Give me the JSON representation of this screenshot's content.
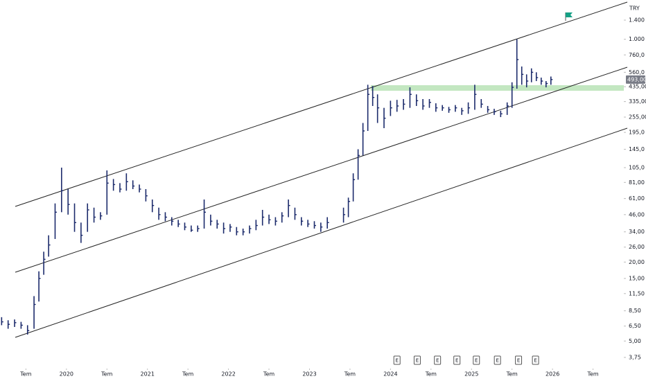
{
  "chart_data": {
    "type": "ohlc",
    "currency": "TRY",
    "color": "#1b2a6b",
    "log_scale": true,
    "x": [
      2019.2,
      2019.28,
      2019.36,
      2019.44,
      2019.52,
      2019.6,
      2019.66,
      2019.72,
      2019.78,
      2019.86,
      2019.94,
      2020.02,
      2020.1,
      2020.18,
      2020.26,
      2020.34,
      2020.42,
      2020.5,
      2020.58,
      2020.66,
      2020.74,
      2020.82,
      2020.9,
      2020.98,
      2021.06,
      2021.14,
      2021.22,
      2021.3,
      2021.38,
      2021.46,
      2021.54,
      2021.62,
      2021.7,
      2021.78,
      2021.86,
      2021.94,
      2022.02,
      2022.1,
      2022.18,
      2022.26,
      2022.34,
      2022.42,
      2022.5,
      2022.58,
      2022.66,
      2022.74,
      2022.82,
      2022.9,
      2022.98,
      2023.06,
      2023.14,
      2023.22,
      2023.42,
      2023.48,
      2023.54,
      2023.6,
      2023.66,
      2023.72,
      2023.78,
      2023.84,
      2023.92,
      2024.0,
      2024.08,
      2024.16,
      2024.24,
      2024.32,
      2024.4,
      2024.48,
      2024.56,
      2024.64,
      2024.72,
      2024.8,
      2024.88,
      2024.96,
      2025.04,
      2025.12,
      2025.2,
      2025.28,
      2025.36,
      2025.44,
      2025.5,
      2025.56,
      2025.62,
      2025.68,
      2025.74,
      2025.8,
      2025.86,
      2025.92,
      2025.98
    ],
    "close": [
      7.0,
      6.7,
      6.9,
      6.6,
      6.0,
      9.5,
      15,
      21,
      27,
      48,
      70,
      55,
      40,
      32,
      50,
      44,
      45,
      80,
      78,
      72,
      82,
      76,
      72,
      64,
      54,
      46,
      44,
      41,
      39,
      37,
      35,
      36,
      48,
      41,
      39,
      36,
      37,
      34,
      34,
      36,
      38,
      44,
      42,
      41,
      45,
      54,
      46,
      41,
      39,
      38,
      37,
      40,
      46,
      58,
      85,
      130,
      200,
      380,
      360,
      300,
      250,
      300,
      310,
      320,
      380,
      340,
      310,
      330,
      300,
      300,
      290,
      300,
      285,
      300,
      380,
      320,
      290,
      280,
      270,
      310,
      430,
      700,
      540,
      480,
      560,
      510,
      480,
      460,
      493
    ],
    "high": [
      7.6,
      7.2,
      7.3,
      7.0,
      6.6,
      11,
      17,
      24,
      32,
      56,
      105,
      72,
      56,
      40,
      56,
      52,
      48,
      100,
      86,
      80,
      95,
      84,
      78,
      72,
      60,
      52,
      48,
      44,
      42,
      40,
      38,
      38,
      60,
      46,
      42,
      40,
      39,
      37,
      36,
      38,
      42,
      50,
      46,
      44,
      48,
      60,
      52,
      44,
      42,
      41,
      40,
      44,
      52,
      62,
      95,
      145,
      230,
      450,
      440,
      380,
      300,
      340,
      345,
      350,
      430,
      380,
      350,
      350,
      325,
      315,
      305,
      315,
      300,
      330,
      450,
      350,
      310,
      295,
      285,
      330,
      470,
      1000,
      620,
      540,
      600,
      560,
      510,
      480,
      520
    ],
    "low": [
      6.6,
      6.2,
      6.4,
      6.2,
      5.6,
      6.2,
      10,
      16,
      22,
      30,
      48,
      46,
      34,
      28,
      34,
      40,
      42,
      46,
      70,
      68,
      70,
      72,
      68,
      58,
      48,
      42,
      41,
      38,
      37,
      35,
      34,
      34,
      36,
      38,
      36,
      33,
      34,
      32,
      32,
      33,
      35,
      38,
      39,
      38,
      40,
      44,
      42,
      38,
      37,
      36,
      34,
      36,
      40,
      44,
      58,
      85,
      130,
      200,
      310,
      230,
      210,
      260,
      280,
      290,
      300,
      310,
      290,
      300,
      280,
      285,
      275,
      280,
      265,
      270,
      290,
      300,
      275,
      265,
      255,
      265,
      300,
      420,
      450,
      430,
      470,
      480,
      450,
      430,
      450
    ],
    "xlim": [
      2019.18,
      2026.88
    ],
    "ylim": [
      3.16,
      1993
    ],
    "xticks": [
      {
        "value": 2019.5,
        "label": "Tem"
      },
      2020,
      {
        "value": 2020.5,
        "label": "Tem"
      },
      2021,
      {
        "value": 2021.5,
        "label": "Tem"
      },
      2022,
      {
        "value": 2022.5,
        "label": "Tem"
      },
      2023,
      {
        "value": 2023.5,
        "label": "Tem"
      },
      2024,
      {
        "value": 2024.5,
        "label": "Tem"
      },
      2025,
      {
        "value": 2025.5,
        "label": "Tem"
      },
      2026,
      {
        "value": 2026.5,
        "label": "Tem"
      }
    ],
    "yticks": [
      {
        "value": 1400,
        "label": "1.400"
      },
      {
        "value": 1000,
        "label": "1.000"
      },
      {
        "value": 760,
        "label": "760,0"
      },
      {
        "value": 560,
        "label": "560,0"
      },
      {
        "value": 435,
        "label": "435,00"
      },
      {
        "value": 335,
        "label": "335,00"
      },
      {
        "value": 255,
        "label": "255,00"
      },
      {
        "value": 195,
        "label": "195,0"
      },
      {
        "value": 145,
        "label": "145,0"
      },
      {
        "value": 105,
        "label": "105,0"
      },
      {
        "value": 81,
        "label": "81,00"
      },
      {
        "value": 61,
        "label": "61,00"
      },
      {
        "value": 46,
        "label": "46,00"
      },
      {
        "value": 34,
        "label": "34,00"
      },
      {
        "value": 26,
        "label": "26,00"
      },
      {
        "value": 20,
        "label": "20,00"
      },
      {
        "value": 15,
        "label": "15,00"
      },
      {
        "value": 11.5,
        "label": "11,50"
      },
      {
        "value": 8.5,
        "label": "8,50"
      },
      {
        "value": 6.5,
        "label": "6,50"
      },
      {
        "value": 5,
        "label": "5,00"
      },
      {
        "value": 3.75,
        "label": "3,75"
      }
    ],
    "last_price": {
      "value": 493,
      "label": "493,00"
    },
    "earnings": [
      {
        "x": 2024.08,
        "label": "E"
      },
      {
        "x": 2024.33,
        "label": "E"
      },
      {
        "x": 2024.58,
        "label": "E"
      },
      {
        "x": 2024.82,
        "label": "E"
      },
      {
        "x": 2025.06,
        "label": "E"
      },
      {
        "x": 2025.32,
        "label": "E"
      },
      {
        "x": 2025.58,
        "label": "E"
      },
      {
        "x": 2025.79,
        "label": "E"
      }
    ]
  }
}
